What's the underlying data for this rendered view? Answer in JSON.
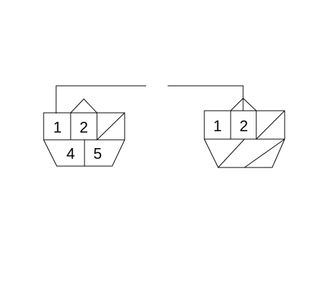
{
  "connector_left": {
    "pin_1": "1",
    "pin_2": "2",
    "pin_4": "4",
    "pin_5": "5"
  },
  "connector_right": {
    "pin_1": "1",
    "pin_2": "2"
  }
}
